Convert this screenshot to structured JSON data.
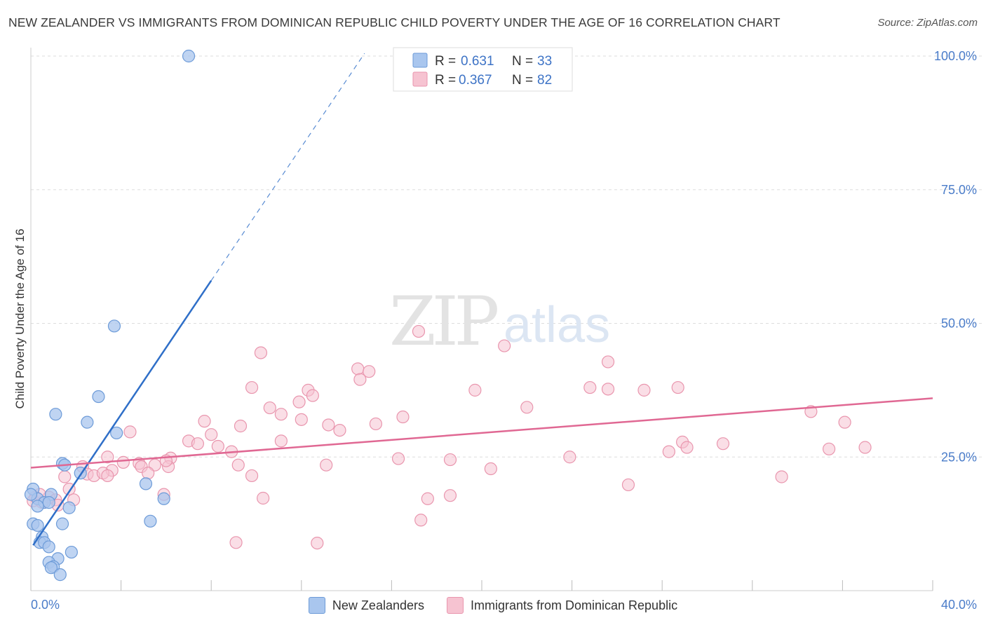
{
  "title": "NEW ZEALANDER VS IMMIGRANTS FROM DOMINICAN REPUBLIC CHILD POVERTY UNDER THE AGE OF 16 CORRELATION CHART",
  "source": "Source: ZipAtlas.com",
  "watermark": {
    "zip": "ZIP",
    "atlas": "atlas"
  },
  "legend_top": [
    {
      "r_label": "R =",
      "r_value": "0.631",
      "n_label": "N =",
      "n_value": "33"
    },
    {
      "r_label": "R =",
      "r_value": "0.367",
      "n_label": "N =",
      "n_value": "82"
    }
  ],
  "legend_bottom": [
    "New Zealanders",
    "Immigrants from Dominican Republic"
  ],
  "colors": {
    "blue_fill": "#a9c6ee",
    "blue_stroke": "#6d9bd8",
    "blue_line": "#2f6fc8",
    "pink_fill": "#f6c3d1",
    "pink_stroke": "#e996ae",
    "pink_line": "#e06893",
    "tick": "#4a7cc9",
    "grid": "#dddddd"
  },
  "chart_data": {
    "type": "scatter",
    "xlabel": "",
    "ylabel": "Child Poverty Under the Age of 16",
    "xlim": [
      0,
      40
    ],
    "ylim": [
      0,
      104
    ],
    "x_tick_labels": [
      "0.0%",
      "40.0%"
    ],
    "y_ticks": [
      25,
      50,
      75,
      100
    ],
    "y_tick_labels": [
      "25.0%",
      "50.0%",
      "75.0%",
      "100.0%"
    ],
    "grid": true,
    "series": [
      {
        "name": "New Zealanders",
        "R": 0.631,
        "N": 33,
        "trend": {
          "x0": 0.1,
          "y0": 8.5,
          "x1": 8.0,
          "y1": 58.0,
          "dash_to_x": 14.8,
          "dash_to_y": 100.5
        },
        "points": [
          [
            7.0,
            100.0
          ],
          [
            3.7,
            49.5
          ],
          [
            3.0,
            36.3
          ],
          [
            1.1,
            33.0
          ],
          [
            2.5,
            31.5
          ],
          [
            3.8,
            29.5
          ],
          [
            1.4,
            23.8
          ],
          [
            1.5,
            23.5
          ],
          [
            2.2,
            22.0
          ],
          [
            5.1,
            20.0
          ],
          [
            0.1,
            19.0
          ],
          [
            0.9,
            18.0
          ],
          [
            0.3,
            17.2
          ],
          [
            5.9,
            17.2
          ],
          [
            0.6,
            16.5
          ],
          [
            0.8,
            16.5
          ],
          [
            0.3,
            15.8
          ],
          [
            1.7,
            15.5
          ],
          [
            0.1,
            12.5
          ],
          [
            0.3,
            12.2
          ],
          [
            1.4,
            12.5
          ],
          [
            5.3,
            13.0
          ],
          [
            0.5,
            10.0
          ],
          [
            0.4,
            9.0
          ],
          [
            0.6,
            9.0
          ],
          [
            0.8,
            8.2
          ],
          [
            1.8,
            7.2
          ],
          [
            1.2,
            6.0
          ],
          [
            0.8,
            5.3
          ],
          [
            1.0,
            4.5
          ],
          [
            0.9,
            4.3
          ],
          [
            1.3,
            3.0
          ],
          [
            0.0,
            18.0
          ]
        ]
      },
      {
        "name": "Immigrants from Dominican Republic",
        "R": 0.367,
        "N": 82,
        "trend": {
          "x0": 0.0,
          "y0": 23.0,
          "x1": 40.0,
          "y1": 36.0
        },
        "points": [
          [
            17.2,
            48.5
          ],
          [
            21.0,
            45.8
          ],
          [
            10.2,
            44.5
          ],
          [
            25.6,
            42.8
          ],
          [
            14.5,
            41.5
          ],
          [
            15.0,
            41.0
          ],
          [
            14.6,
            39.5
          ],
          [
            9.8,
            38.0
          ],
          [
            12.3,
            37.5
          ],
          [
            19.7,
            37.5
          ],
          [
            24.8,
            38.0
          ],
          [
            25.6,
            37.7
          ],
          [
            27.2,
            37.5
          ],
          [
            28.7,
            38.0
          ],
          [
            12.5,
            36.5
          ],
          [
            11.9,
            35.3
          ],
          [
            10.6,
            34.2
          ],
          [
            22.0,
            34.3
          ],
          [
            11.1,
            33.0
          ],
          [
            12.0,
            32.0
          ],
          [
            16.5,
            32.5
          ],
          [
            7.7,
            31.7
          ],
          [
            9.3,
            30.8
          ],
          [
            13.2,
            31.0
          ],
          [
            13.7,
            30.0
          ],
          [
            15.3,
            31.2
          ],
          [
            4.4,
            29.7
          ],
          [
            8.0,
            29.2
          ],
          [
            7.0,
            28.0
          ],
          [
            11.1,
            28.0
          ],
          [
            7.4,
            27.5
          ],
          [
            8.3,
            27.0
          ],
          [
            28.9,
            27.8
          ],
          [
            29.1,
            26.8
          ],
          [
            30.7,
            27.5
          ],
          [
            34.6,
            33.5
          ],
          [
            35.4,
            26.5
          ],
          [
            36.1,
            31.5
          ],
          [
            37.0,
            26.8
          ],
          [
            8.9,
            26.0
          ],
          [
            28.3,
            26.0
          ],
          [
            3.4,
            25.0
          ],
          [
            6.2,
            24.8
          ],
          [
            4.1,
            24.0
          ],
          [
            4.8,
            23.8
          ],
          [
            6.1,
            23.2
          ],
          [
            6.0,
            24.3
          ],
          [
            4.9,
            23.2
          ],
          [
            5.5,
            23.5
          ],
          [
            2.3,
            23.2
          ],
          [
            3.6,
            22.5
          ],
          [
            2.5,
            21.8
          ],
          [
            5.2,
            22.0
          ],
          [
            2.8,
            21.5
          ],
          [
            3.2,
            22.0
          ],
          [
            3.4,
            21.5
          ],
          [
            1.5,
            21.3
          ],
          [
            9.2,
            23.5
          ],
          [
            13.1,
            23.5
          ],
          [
            16.3,
            24.7
          ],
          [
            18.6,
            24.5
          ],
          [
            20.4,
            22.8
          ],
          [
            23.9,
            25.0
          ],
          [
            9.8,
            21.5
          ],
          [
            26.5,
            19.8
          ],
          [
            33.3,
            21.3
          ],
          [
            1.7,
            19.0
          ],
          [
            5.9,
            18.0
          ],
          [
            0.2,
            17.5
          ],
          [
            0.8,
            17.5
          ],
          [
            1.1,
            17.0
          ],
          [
            1.9,
            17.0
          ],
          [
            0.5,
            16.5
          ],
          [
            10.3,
            17.3
          ],
          [
            17.6,
            17.2
          ],
          [
            18.6,
            17.8
          ],
          [
            17.3,
            13.2
          ],
          [
            9.1,
            9.0
          ],
          [
            12.7,
            8.9
          ],
          [
            0.1,
            16.8
          ],
          [
            1.2,
            16.0
          ],
          [
            0.4,
            18.0
          ]
        ]
      }
    ]
  }
}
